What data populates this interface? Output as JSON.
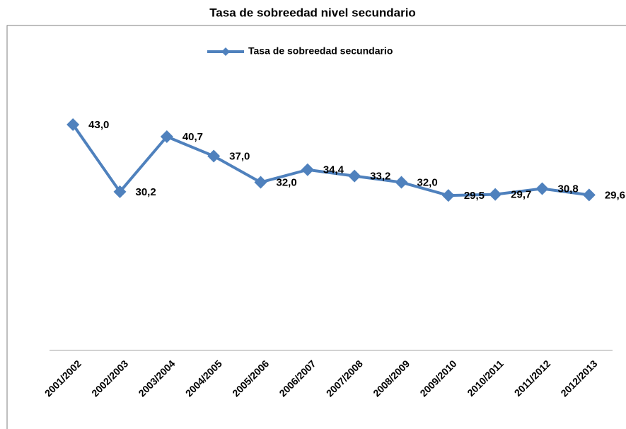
{
  "chart_data": {
    "type": "line",
    "title": "Tasa de sobreedad nivel secundario",
    "categories": [
      "2001/2002",
      "2002/2003",
      "2003/2004",
      "2004/2005",
      "2005/2006",
      "2006/2007",
      "2007/2008",
      "2008/2009",
      "2009/2010",
      "2010/2011",
      "2011/2012",
      "2012/2013"
    ],
    "series": [
      {
        "name": "Tasa de sobreedad secundario",
        "color": "#4f81bd",
        "values": [
          43.0,
          30.2,
          40.7,
          37.0,
          32.0,
          34.4,
          33.2,
          32.0,
          29.5,
          29.7,
          30.8,
          29.6
        ],
        "value_labels": [
          "43,0",
          "30,2",
          "40,7",
          "37,0",
          "32,0",
          "34,4",
          "33,2",
          "32,0",
          "29,5",
          "29,7",
          "30,8",
          "29,6"
        ]
      }
    ],
    "ylim": [
      0,
      50
    ],
    "legend": "top",
    "grid": false
  }
}
